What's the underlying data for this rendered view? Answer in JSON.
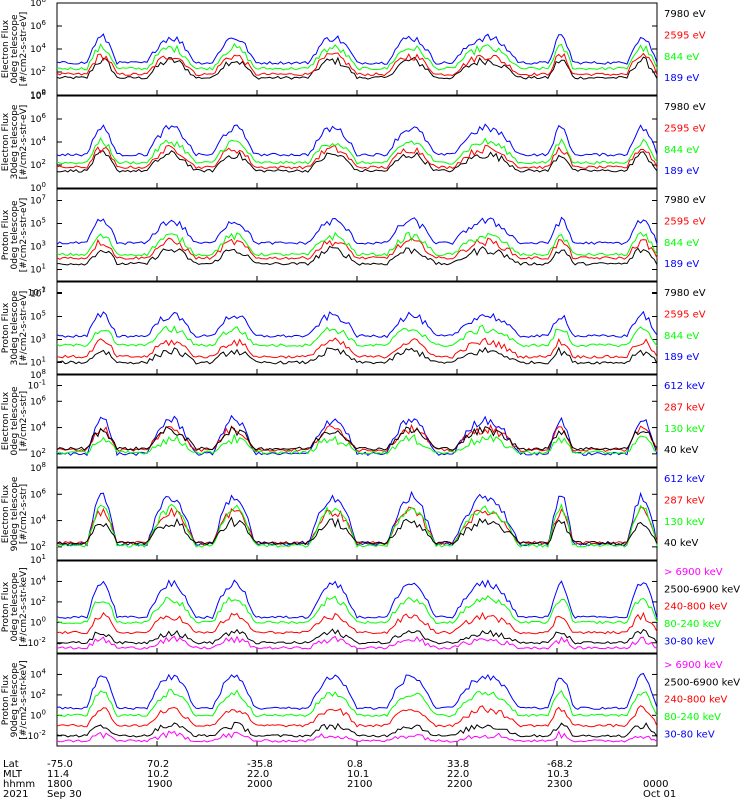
{
  "colors": {
    "blue": "#0000ff",
    "red": "#ff0000",
    "green": "#00ff00",
    "black": "#000000",
    "magenta": "#ff00ff"
  },
  "chart_data": [
    {
      "type": "line",
      "ylabel": [
        "TED",
        "Electron Flux",
        "0deg telescope",
        "[#/cm2-s-str-eV]"
      ],
      "ylog": true,
      "ylim_exp": [
        0,
        8
      ],
      "yticks_exp": [
        0,
        2,
        4,
        6,
        8
      ],
      "series": [
        {
          "name": "7980 eV",
          "color": "black",
          "level": 1.5,
          "amp": 1.5
        },
        {
          "name": "2595 eV",
          "color": "red",
          "level": 1.8,
          "amp": 1.6
        },
        {
          "name": "844 eV",
          "color": "green",
          "level": 2.3,
          "amp": 1.8
        },
        {
          "name": "189 eV",
          "color": "blue",
          "level": 2.8,
          "amp": 2.2
        }
      ]
    },
    {
      "type": "line",
      "ylabel": [
        "TED",
        "Electron Flux",
        "30deg telescope",
        "[#/cm2-s-str-eV]"
      ],
      "ylog": true,
      "ylim_exp": [
        0,
        8
      ],
      "yticks_exp": [
        0,
        2,
        4,
        6,
        8
      ],
      "series": [
        {
          "name": "7980 eV",
          "color": "black",
          "level": 1.5,
          "amp": 1.4
        },
        {
          "name": "2595 eV",
          "color": "red",
          "level": 1.8,
          "amp": 1.6
        },
        {
          "name": "844 eV",
          "color": "green",
          "level": 2.2,
          "amp": 1.8
        },
        {
          "name": "189 eV",
          "color": "blue",
          "level": 2.9,
          "amp": 2.3
        }
      ]
    },
    {
      "type": "line",
      "ylabel": [
        "TED",
        "Proton Flux",
        "0deg telescope",
        "[#/cm2-s-str-eV]"
      ],
      "ylog": true,
      "ylim_exp": [
        0,
        8
      ],
      "yticks_exp": [
        -1,
        1,
        3,
        5,
        7
      ],
      "series": [
        {
          "name": "7980 eV",
          "color": "black",
          "level": 1.5,
          "amp": 1.2
        },
        {
          "name": "2595 eV",
          "color": "red",
          "level": 2.0,
          "amp": 1.4
        },
        {
          "name": "844 eV",
          "color": "green",
          "level": 2.3,
          "amp": 1.6
        },
        {
          "name": "189 eV",
          "color": "blue",
          "level": 3.3,
          "amp": 1.9
        }
      ]
    },
    {
      "type": "line",
      "ylabel": [
        "TED",
        "Proton Flux",
        "30deg telescope",
        "[#/cm2-s-str-eV]"
      ],
      "ylog": true,
      "ylim_exp": [
        0,
        8
      ],
      "yticks_exp": [
        -1,
        1,
        3,
        5,
        7
      ],
      "series": [
        {
          "name": "7980 eV",
          "color": "black",
          "level": 1.0,
          "amp": 1.0
        },
        {
          "name": "2595 eV",
          "color": "red",
          "level": 1.5,
          "amp": 1.3
        },
        {
          "name": "844 eV",
          "color": "green",
          "level": 2.5,
          "amp": 1.4
        },
        {
          "name": "189 eV",
          "color": "blue",
          "level": 3.3,
          "amp": 1.8
        }
      ]
    },
    {
      "type": "line",
      "ylabel": [
        "MEPED",
        "Electron Flux",
        "0deg telescope",
        "[#/cm2-s-str]"
      ],
      "ylog": true,
      "ylim_exp": [
        1,
        8
      ],
      "yticks_exp": [
        2,
        4,
        6,
        8
      ],
      "series": [
        {
          "name": "612 keV",
          "color": "blue",
          "level": 2.0,
          "amp": 2.6
        },
        {
          "name": "287 keV",
          "color": "red",
          "level": 2.3,
          "amp": 1.6
        },
        {
          "name": "130 keV",
          "color": "green",
          "level": 2.1,
          "amp": 1.0
        },
        {
          "name": "40 keV",
          "color": "black",
          "level": 2.4,
          "amp": 1.4
        }
      ]
    },
    {
      "type": "line",
      "ylabel": [
        "MEPED",
        "Electron Flux",
        "90deg telescope",
        "[#/cm2-s-str]"
      ],
      "ylog": true,
      "ylim_exp": [
        1,
        8
      ],
      "yticks_exp": [
        1,
        2,
        4,
        6,
        8
      ],
      "series": [
        {
          "name": "612 keV",
          "color": "blue",
          "level": 2.2,
          "amp": 3.6
        },
        {
          "name": "287 keV",
          "color": "red",
          "level": 2.3,
          "amp": 2.4
        },
        {
          "name": "130 keV",
          "color": "green",
          "level": 2.1,
          "amp": 2.8
        },
        {
          "name": "40 keV",
          "color": "black",
          "level": 2.3,
          "amp": 1.6
        }
      ]
    },
    {
      "type": "line",
      "ylabel": [
        "MEPED",
        "Proton Flux",
        "0deg telescope",
        "[#/cm2-s-str-keV]"
      ],
      "ylog": true,
      "ylim_exp": [
        -3,
        6
      ],
      "yticks_exp": [
        -2,
        0,
        2,
        4
      ],
      "series": [
        {
          "name": "> 6900 keV",
          "color": "magenta",
          "level": -2.5,
          "amp": 0.8
        },
        {
          "name": "2500-6900 keV",
          "color": "black",
          "level": -2.0,
          "amp": 1.0
        },
        {
          "name": "240-800 keV",
          "color": "red",
          "level": -1.0,
          "amp": 1.6
        },
        {
          "name": "80-240 keV",
          "color": "green",
          "level": 0.0,
          "amp": 2.3
        },
        {
          "name": "30-80 keV",
          "color": "blue",
          "level": 0.5,
          "amp": 3.3
        }
      ]
    },
    {
      "type": "line",
      "ylabel": [
        "MEPED",
        "Proton Flux",
        "90deg telescope",
        "[#/cm2-s-str-keV]"
      ],
      "ylog": true,
      "ylim_exp": [
        -3,
        6
      ],
      "yticks_exp": [
        -2,
        0,
        2,
        4
      ],
      "series": [
        {
          "name": "> 6900 keV",
          "color": "magenta",
          "level": -2.5,
          "amp": 0.6
        },
        {
          "name": "2500-6900 keV",
          "color": "black",
          "level": -2.0,
          "amp": 1.0
        },
        {
          "name": "240-800 keV",
          "color": "red",
          "level": -1.0,
          "amp": 1.6
        },
        {
          "name": "80-240 keV",
          "color": "green",
          "level": 0.0,
          "amp": 2.2
        },
        {
          "name": "30-80 keV",
          "color": "blue",
          "level": 0.7,
          "amp": 3.1
        }
      ]
    }
  ],
  "x_axis": {
    "row_labels": [
      "Lat",
      "MLT",
      "hhmm",
      "2021"
    ],
    "columns": [
      {
        "lat": "-75.0",
        "mlt": "11.4",
        "hhmm": "1800",
        "date": "Sep 30"
      },
      {
        "lat": "70.2",
        "mlt": "10.2",
        "hhmm": "1900",
        "date": ""
      },
      {
        "lat": "-35.8",
        "mlt": "22.0",
        "hhmm": "2000",
        "date": ""
      },
      {
        "lat": "0.8",
        "mlt": "10.1",
        "hhmm": "2100",
        "date": ""
      },
      {
        "lat": "33.8",
        "mlt": "22.0",
        "hhmm": "2200",
        "date": ""
      },
      {
        "lat": "-68.2",
        "mlt": "10.3",
        "hhmm": "2300",
        "date": ""
      },
      {
        "lat": "",
        "mlt": "",
        "hhmm": "0000",
        "date": "Oct 01"
      }
    ]
  }
}
